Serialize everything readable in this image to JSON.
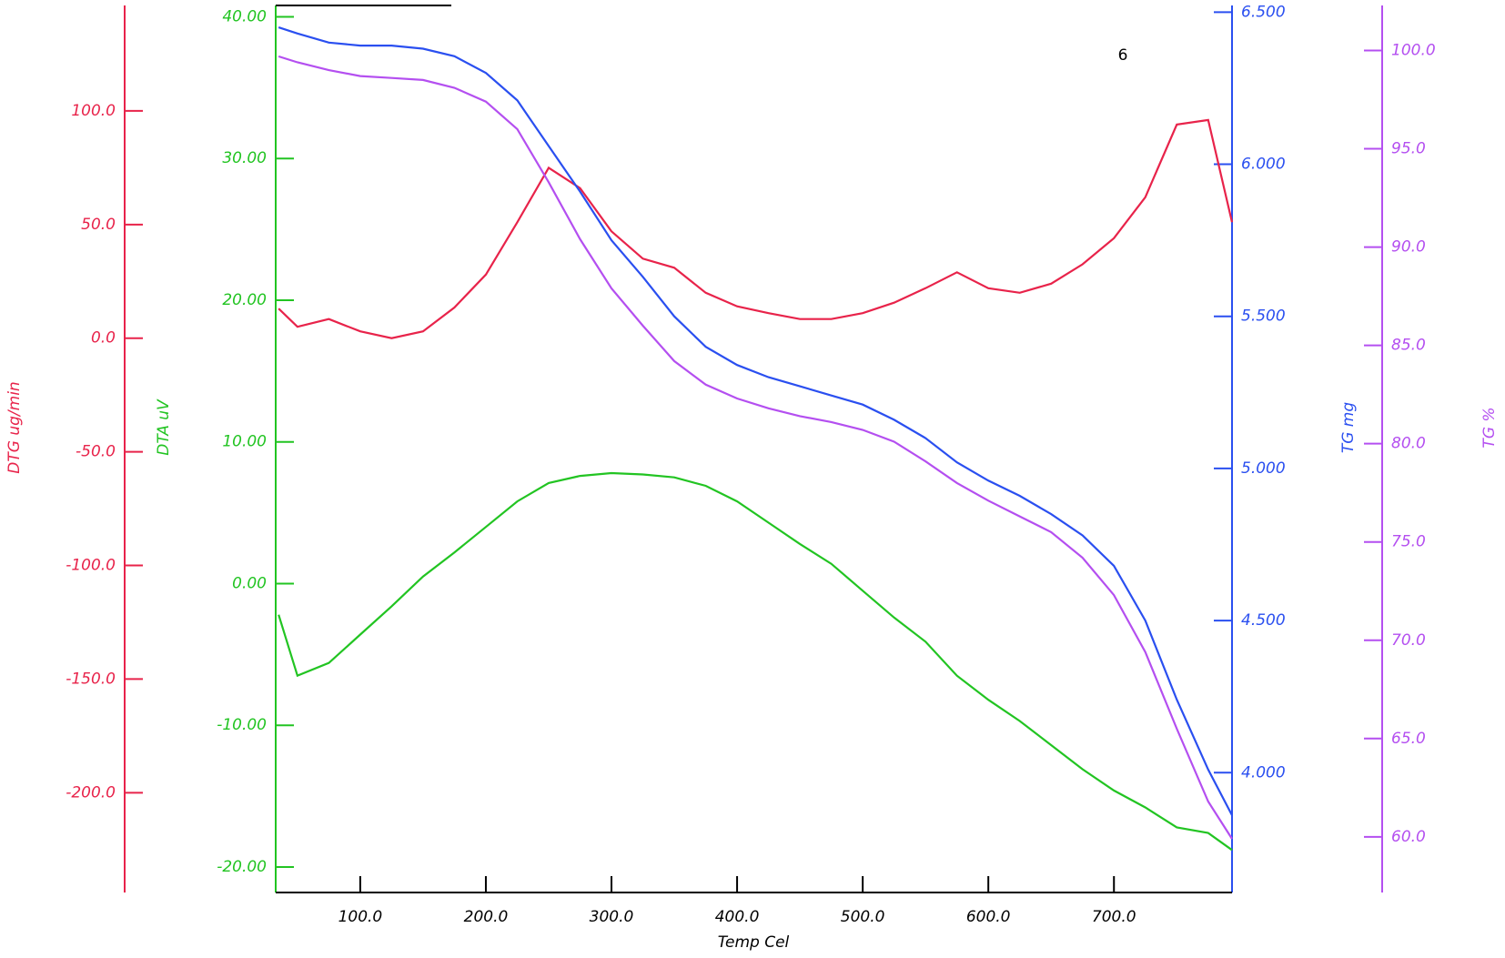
{
  "chart_data": {
    "type": "line",
    "annotation": "6",
    "xlabel": "Temp Cel",
    "xlim": [
      32.7,
      794
    ],
    "xticks": [
      {
        "value": 100,
        "label": "100.0"
      },
      {
        "value": 200,
        "label": "200.0"
      },
      {
        "value": 300,
        "label": "300.0"
      },
      {
        "value": 400,
        "label": "400.0"
      },
      {
        "value": 500,
        "label": "500.0"
      },
      {
        "value": 600,
        "label": "600.0"
      },
      {
        "value": 700,
        "label": "700.0"
      }
    ],
    "ylabel": "DTG ug/min",
    "ycolor": "#e8234a",
    "ylim": [
      -243.9,
      146.4
    ],
    "yticks": [
      {
        "value": 100,
        "label": "100.0"
      },
      {
        "value": 50,
        "label": "50.0"
      },
      {
        "value": 0,
        "label": "0.0"
      },
      {
        "value": -50,
        "label": "-50.0"
      },
      {
        "value": -100,
        "label": "-100.0"
      },
      {
        "value": -150,
        "label": "-150.0"
      },
      {
        "value": -200,
        "label": "-200.0"
      }
    ],
    "y2label": "DTA uV",
    "y2color": "#22c422",
    "y2lim": [
      -21.8,
      40.8
    ],
    "y2ticks": [
      {
        "value": 40,
        "label": "40.00"
      },
      {
        "value": 30,
        "label": "30.00"
      },
      {
        "value": 20,
        "label": "20.00"
      },
      {
        "value": 10,
        "label": "10.00"
      },
      {
        "value": 0,
        "label": "0.00"
      },
      {
        "value": -10,
        "label": "-10.00"
      },
      {
        "value": -20,
        "label": "-20.00"
      }
    ],
    "y3label": "TG mg",
    "y3color": "#2a4ff0",
    "y3lim": [
      3.606,
      6.522
    ],
    "y3ticks": [
      {
        "value": 6.5,
        "label": "6.500"
      },
      {
        "value": 6,
        "label": "6.000"
      },
      {
        "value": 5.5,
        "label": "5.500"
      },
      {
        "value": 5,
        "label": "5.000"
      },
      {
        "value": 4.5,
        "label": "4.500"
      },
      {
        "value": 4,
        "label": "4.000"
      }
    ],
    "y4label": "TG %",
    "y4color": "#b44ff0",
    "y4lim": [
      57.17,
      102.29
    ],
    "y4ticks": [
      {
        "value": 100,
        "label": "100.0"
      },
      {
        "value": 95,
        "label": "95.0"
      },
      {
        "value": 90,
        "label": "90.0"
      },
      {
        "value": 85,
        "label": "85.0"
      },
      {
        "value": 80,
        "label": "80.0"
      },
      {
        "value": 75,
        "label": "75.0"
      },
      {
        "value": 70,
        "label": "70.0"
      },
      {
        "value": 65,
        "label": "65.0"
      },
      {
        "value": 60,
        "label": "60.0"
      }
    ],
    "x": [
      35,
      50,
      75,
      100,
      125,
      150,
      175,
      200,
      225,
      250,
      275,
      300,
      325,
      350,
      375,
      400,
      425,
      450,
      475,
      500,
      525,
      550,
      575,
      600,
      625,
      650,
      675,
      700,
      725,
      750,
      775,
      794
    ],
    "series": [
      {
        "name": "DTG",
        "axis": "y",
        "color": "#e8234a",
        "values": [
          13,
          5,
          8.4,
          3,
          0,
          3,
          13.5,
          28,
          51,
          75,
          66,
          47,
          35,
          31,
          20,
          14,
          11,
          8.4,
          8.4,
          11,
          15.6,
          22,
          29,
          22,
          20,
          24,
          32.5,
          44,
          62,
          94,
          96,
          51
        ]
      },
      {
        "name": "DTA",
        "axis": "y2",
        "color": "#22c422",
        "values": [
          -2.2,
          -6.5,
          -5.6,
          -3.6,
          -1.6,
          0.5,
          2.2,
          4,
          5.8,
          7.1,
          7.6,
          7.8,
          7.7,
          7.5,
          6.9,
          5.8,
          4.3,
          2.8,
          1.4,
          -0.5,
          -2.4,
          -4.1,
          -6.5,
          -8.2,
          -9.7,
          -11.4,
          -13.1,
          -14.6,
          -15.8,
          -17.2,
          -17.6,
          -18.8
        ]
      },
      {
        "name": "TG mg",
        "axis": "y3",
        "color": "#2a4ff0",
        "values": [
          6.45,
          6.43,
          6.4,
          6.39,
          6.39,
          6.38,
          6.355,
          6.3,
          6.21,
          6.06,
          5.91,
          5.75,
          5.63,
          5.5,
          5.4,
          5.34,
          5.3,
          5.27,
          5.24,
          5.21,
          5.16,
          5.1,
          5.02,
          4.96,
          4.91,
          4.85,
          4.78,
          4.68,
          4.5,
          4.24,
          4.01,
          3.86
        ]
      },
      {
        "name": "TG %",
        "axis": "y4",
        "color": "#b44ff0",
        "values": [
          99.7,
          99.4,
          99.0,
          98.7,
          98.6,
          98.5,
          98.1,
          97.4,
          96.0,
          93.3,
          90.4,
          87.9,
          86.0,
          84.2,
          83.0,
          82.3,
          81.8,
          81.4,
          81.1,
          80.7,
          80.1,
          79.1,
          78.0,
          77.1,
          76.3,
          75.5,
          74.2,
          72.3,
          69.4,
          65.5,
          61.8,
          59.9
        ]
      }
    ]
  }
}
